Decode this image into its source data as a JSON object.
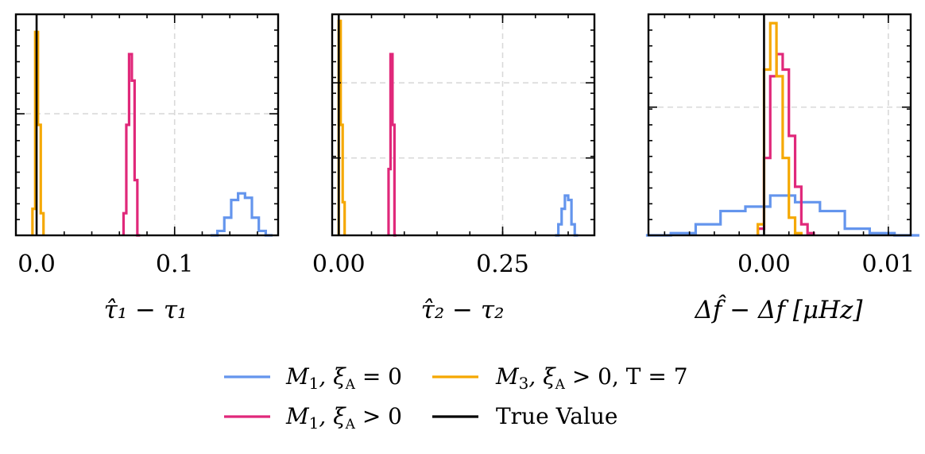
{
  "chart_data": [
    {
      "type": "histogram",
      "xlabel": "τ̂₁ − τ₁",
      "xlim": [
        -0.015,
        0.175
      ],
      "xticks": [
        0.0,
        0.1
      ],
      "xtick_labels": [
        "0.0",
        "0.1"
      ],
      "ylim": [
        0,
        1
      ],
      "ygrid": [
        0.55
      ],
      "xgrid": [
        0.1
      ],
      "true_value": 0.0,
      "series": [
        {
          "name": "M1, ξA = 0",
          "color": "#6495ED",
          "bins": [
            0.126,
            0.131,
            0.136,
            0.141,
            0.146,
            0.151,
            0.156,
            0.161,
            0.166,
            0.171
          ],
          "counts": [
            0.0,
            0.02,
            0.08,
            0.16,
            0.19,
            0.17,
            0.08,
            0.02,
            0.0
          ]
        },
        {
          "name": "M1, ξA > 0",
          "color": "#E0287A",
          "bins": [
            0.063,
            0.065,
            0.067,
            0.069,
            0.071,
            0.073,
            0.075
          ],
          "counts": [
            0.1,
            0.5,
            0.82,
            0.7,
            0.25,
            0.0
          ]
        },
        {
          "name": "M3, ξA > 0, T = 7",
          "color": "#F5A800",
          "bins": [
            -0.003,
            -0.001,
            0.001,
            0.003,
            0.005
          ],
          "counts": [
            0.12,
            0.92,
            0.5,
            0.1
          ]
        }
      ]
    },
    {
      "type": "histogram",
      "xlabel": "τ̂₂ − τ₂",
      "xlim": [
        -0.01,
        0.39
      ],
      "xticks": [
        0.0,
        0.25
      ],
      "xtick_labels": [
        "0.00",
        "0.25"
      ],
      "ylim": [
        0,
        1
      ],
      "ygrid": [
        0.35,
        0.69
      ],
      "xgrid": [
        0.25
      ],
      "true_value": 0.0,
      "series": [
        {
          "name": "M1, ξA = 0",
          "color": "#6495ED",
          "bins": [
            0.33,
            0.335,
            0.34,
            0.345,
            0.35,
            0.355,
            0.36,
            0.365
          ],
          "counts": [
            0.0,
            0.05,
            0.12,
            0.18,
            0.16,
            0.05,
            0.0
          ]
        },
        {
          "name": "M1, ξA > 0",
          "color": "#E0287A",
          "bins": [
            0.076,
            0.079,
            0.082,
            0.085,
            0.088
          ],
          "counts": [
            0.3,
            0.82,
            0.5,
            0.0
          ]
        },
        {
          "name": "M3, ξA > 0, T = 7",
          "color": "#F5A800",
          "bins": [
            0.0,
            0.003,
            0.006,
            0.009
          ],
          "counts": [
            0.97,
            0.5,
            0.15
          ]
        }
      ]
    },
    {
      "type": "histogram",
      "xlabel": "Δf̂ − Δf [μHz]",
      "xlim": [
        -0.0093,
        0.0118
      ],
      "xticks": [
        0.0,
        0.01
      ],
      "xtick_labels": [
        "0.00",
        "0.01"
      ],
      "ylim": [
        0,
        1
      ],
      "ygrid": [
        0.58
      ],
      "xgrid": [
        0.01
      ],
      "true_value": 0.0,
      "series": [
        {
          "name": "M1, ξA = 0",
          "color": "#6495ED",
          "bins": [
            -0.0095,
            -0.0075,
            -0.0055,
            -0.0035,
            -0.0015,
            0.0005,
            0.0025,
            0.0045,
            0.0065,
            0.0085,
            0.0105,
            0.0125
          ],
          "counts": [
            0.0,
            0.01,
            0.05,
            0.11,
            0.13,
            0.18,
            0.15,
            0.11,
            0.03,
            0.01,
            0.0
          ]
        },
        {
          "name": "M1, ξA > 0",
          "color": "#E0287A",
          "bins": [
            -0.0005,
            0.0,
            0.0005,
            0.001,
            0.0015,
            0.002,
            0.0025,
            0.003,
            0.0035,
            0.004
          ],
          "counts": [
            0.03,
            0.35,
            0.72,
            0.82,
            0.75,
            0.45,
            0.22,
            0.05,
            0.01
          ]
        },
        {
          "name": "M3, ξA > 0, T = 7",
          "color": "#F5A800",
          "bins": [
            -0.0005,
            0.0,
            0.0005,
            0.001,
            0.0015,
            0.002,
            0.0025,
            0.003
          ],
          "counts": [
            0.05,
            0.75,
            0.96,
            0.72,
            0.35,
            0.08,
            0.01
          ]
        }
      ]
    }
  ],
  "legend": [
    {
      "name": "M1, ξA = 0",
      "label_main": "M",
      "label_sub": "1",
      "label_rest": ", ξ",
      "label_sub2": "A",
      "label_end": " = 0",
      "color": "#6495ED"
    },
    {
      "name": "M3, ξA > 0, T = 7",
      "label_main": "M",
      "label_sub": "3",
      "label_rest": ", ξ",
      "label_sub2": "A",
      "label_end": " > 0, T = 7",
      "color": "#F5A800"
    },
    {
      "name": "M1, ξA > 0",
      "label_main": "M",
      "label_sub": "1",
      "label_rest": ", ξ",
      "label_sub2": "A",
      "label_end": " > 0",
      "color": "#E0287A"
    },
    {
      "name": "True Value",
      "label_main": "True Value",
      "label_sub": "",
      "label_rest": "",
      "label_sub2": "",
      "label_end": "",
      "color": "#000000"
    }
  ]
}
